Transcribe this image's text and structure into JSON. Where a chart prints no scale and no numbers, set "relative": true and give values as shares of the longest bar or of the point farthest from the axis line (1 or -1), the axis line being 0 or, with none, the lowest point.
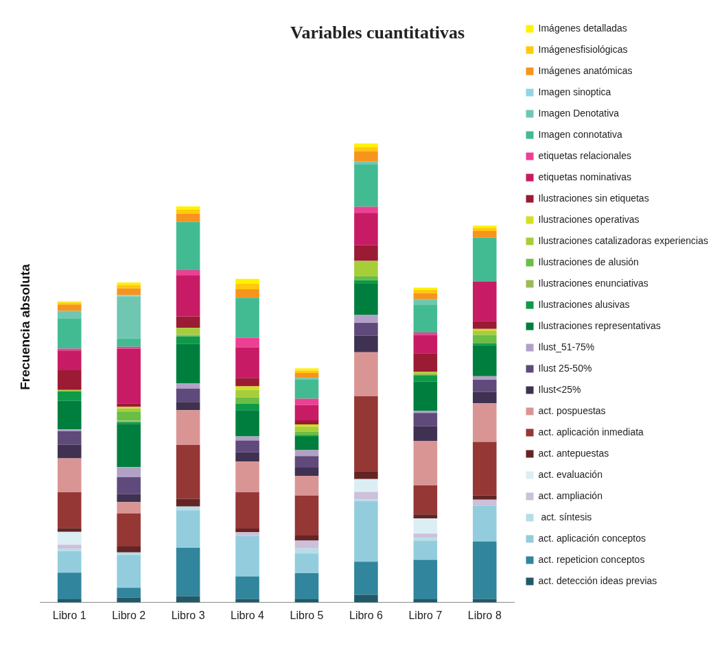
{
  "chart_data": {
    "type": "bar",
    "title": "Variables cuantitativas",
    "ylabel": "Frecuencia absoluta",
    "categories": [
      "Libro 1",
      "Libro 2",
      "Libro 3",
      "Libro 4",
      "Libro 5",
      "Libro 6",
      "Libro 7",
      "Libro 8"
    ],
    "stacked": true,
    "relative": true,
    "grid": false,
    "legend": "right",
    "series": [
      {
        "name": "act. detección ideas previas",
        "color": "#215968",
        "values": [
          0.007,
          0.011,
          0.014,
          0.008,
          0.007,
          0.017,
          0.007,
          0.008
        ]
      },
      {
        "name": "act. repeticion conceptos",
        "color": "#31859c",
        "values": [
          0.058,
          0.021,
          0.105,
          0.049,
          0.057,
          0.072,
          0.086,
          0.125
        ]
      },
      {
        "name": "act. aplicación conceptos",
        "color": "#93cddd",
        "values": [
          0.047,
          0.072,
          0.082,
          0.088,
          0.043,
          0.132,
          0.041,
          0.078
        ]
      },
      {
        "name": " act. síntesis",
        "color": "#b7dee8",
        "values": [
          0.005,
          0.005,
          0.008,
          0,
          0.011,
          0.004,
          0.007,
          0
        ]
      },
      {
        "name": "act. ampliación",
        "color": "#ccc0da",
        "values": [
          0.009,
          0,
          0,
          0.008,
          0.017,
          0.016,
          0.009,
          0.013
        ]
      },
      {
        "name": "act. evaluación",
        "color": "#dbeef4",
        "values": [
          0.028,
          0,
          0,
          0,
          0,
          0.028,
          0.033,
          0
        ]
      },
      {
        "name": "act. antepuestas",
        "color": "#632523",
        "values": [
          0.008,
          0.013,
          0.017,
          0.008,
          0.011,
          0.017,
          0.009,
          0.009
        ]
      },
      {
        "name": "act. aplicación inmediata",
        "color": "#953735",
        "values": [
          0.078,
          0.072,
          0.117,
          0.079,
          0.087,
          0.163,
          0.063,
          0.117
        ]
      },
      {
        "name": "act. pospuestas",
        "color": "#d99594",
        "values": [
          0.074,
          0.025,
          0.076,
          0.067,
          0.043,
          0.096,
          0.097,
          0.084
        ]
      },
      {
        "name": "Ilust<25%",
        "color": "#3f3151",
        "values": [
          0.03,
          0.017,
          0.018,
          0.02,
          0.018,
          0.036,
          0.032,
          0.025
        ]
      },
      {
        "name": "Ilust 25-50%",
        "color": "#604a7b",
        "values": [
          0.029,
          0.037,
          0.029,
          0.026,
          0.025,
          0.028,
          0.029,
          0.026
        ]
      },
      {
        "name": "Ilust_51-75%",
        "color": "#b2a1c7",
        "values": [
          0.004,
          0.022,
          0.011,
          0.009,
          0.013,
          0.018,
          0.005,
          0.008
        ]
      },
      {
        "name": "Ilustraciones representativas",
        "color": "#007e3e",
        "values": [
          0.062,
          0.094,
          0.086,
          0.057,
          0.029,
          0.067,
          0.063,
          0.067
        ]
      },
      {
        "name": "Ilustraciones alusivas",
        "color": "#0e9a48",
        "values": [
          0.021,
          0.004,
          0.017,
          0.014,
          0.003,
          0.008,
          0.014,
          0.005
        ]
      },
      {
        "name": "Ilustraciones enunciativas",
        "color": "#9bbb59",
        "values": [
          0,
          0.003,
          0.004,
          0,
          0,
          0,
          0.004,
          0
        ]
      },
      {
        "name": "Ilustraciones de alusión",
        "color": "#6abd45",
        "values": [
          0,
          0.02,
          0,
          0.014,
          0.008,
          0.009,
          0,
          0.018
        ]
      },
      {
        "name": "Ilustraciones catalizadoras experiencias",
        "color": "#a6ce39",
        "values": [
          0.003,
          0.007,
          0.014,
          0.016,
          0.011,
          0.033,
          0.004,
          0.009
        ]
      },
      {
        "name": "Ilustraciones operativas",
        "color": "#d4df26",
        "values": [
          0,
          0.003,
          0,
          0.008,
          0.005,
          0,
          0,
          0.004
        ]
      },
      {
        "name": "Ilustraciones sin etiquetas",
        "color": "#9b1b34",
        "values": [
          0.043,
          0.008,
          0.025,
          0.018,
          0.009,
          0.034,
          0.04,
          0.017
        ]
      },
      {
        "name": "etiquetas nominativas",
        "color": "#c81b65",
        "values": [
          0.043,
          0.119,
          0.09,
          0.067,
          0.033,
          0.071,
          0.04,
          0.086
        ]
      },
      {
        "name": "etiquetas relacionales",
        "color": "#ec4094",
        "values": [
          0.004,
          0.004,
          0.011,
          0.021,
          0.014,
          0.013,
          0.005,
          0.001
        ]
      },
      {
        "name": "Imagen connotativa",
        "color": "#43bb92",
        "values": [
          0.066,
          0.018,
          0.105,
          0.087,
          0.042,
          0.092,
          0.061,
          0.095
        ]
      },
      {
        "name": "Imagen Denotativa",
        "color": "#6fc7b1",
        "values": [
          0.016,
          0.092,
          0,
          0,
          0.003,
          0.007,
          0.012,
          0
        ]
      },
      {
        "name": "Imagen sinoptica",
        "color": "#92d5e3",
        "values": [
          0,
          0.003,
          0,
          0,
          0,
          0,
          0,
          0
        ]
      },
      {
        "name": "Imágenes anatómicas",
        "color": "#f7941d",
        "values": [
          0.014,
          0.014,
          0.018,
          0.018,
          0.011,
          0.022,
          0.013,
          0.014
        ]
      },
      {
        "name": "Imágenesfisiológicas",
        "color": "#ffc90e",
        "values": [
          0.004,
          0.008,
          0.009,
          0.012,
          0.005,
          0.009,
          0.007,
          0.007
        ]
      },
      {
        "name": "Imágenes detalladas",
        "color": "#fff200",
        "values": [
          0.003,
          0.005,
          0.007,
          0.011,
          0.005,
          0.008,
          0.005,
          0.005
        ]
      }
    ]
  }
}
